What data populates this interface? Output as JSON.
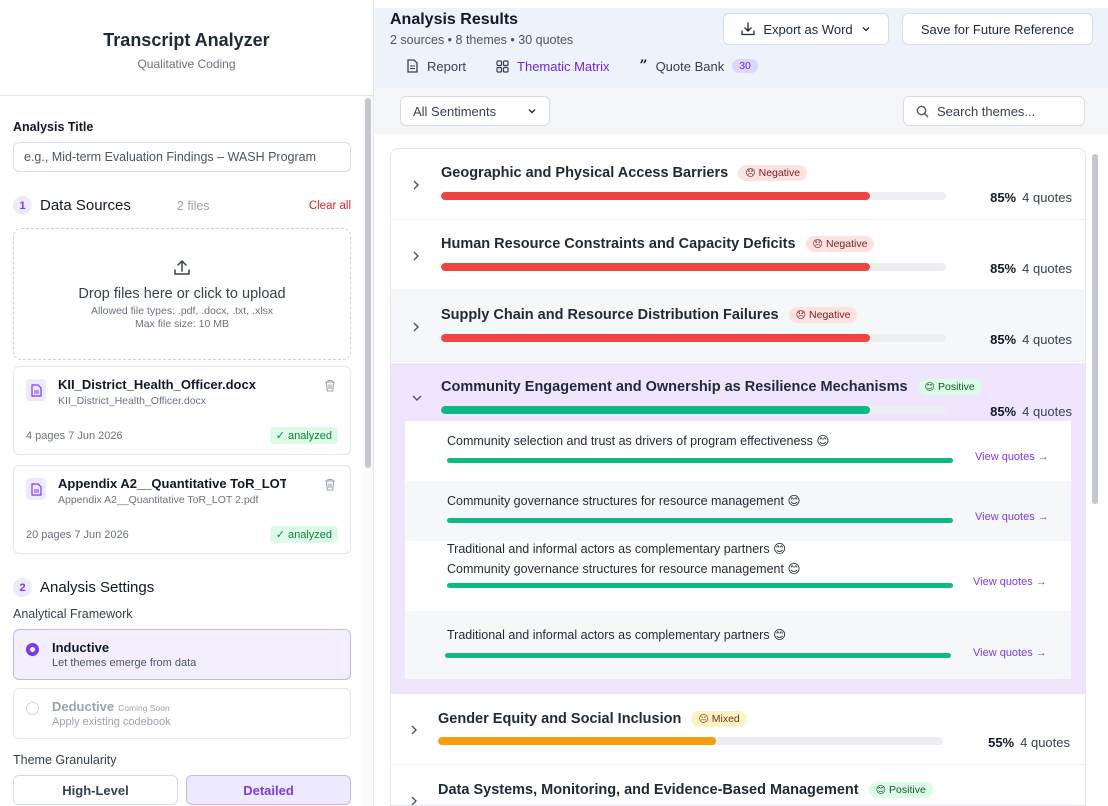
{
  "sidebar": {
    "title": "Transcript Analyzer",
    "subtitle": "Qualitative Coding",
    "analysis_title_label": "Analysis Title",
    "analysis_title_placeholder": "e.g., Mid-term Evaluation Findings – WASH Program",
    "data_sources": {
      "step": "1",
      "title": "Data Sources",
      "count": "2 files",
      "clear_label": "Clear all",
      "dropzone_main": "Drop files here or click to upload",
      "dropzone_types": "Allowed file types: .pdf, .docx, .txt, .xlsx",
      "dropzone_size": "Max file size: 10 MB",
      "files": [
        {
          "name": "KII_District_Health_Officer.docx",
          "sub": "KII_District_Health_Officer.docx",
          "meta": "4 pages  7 Jun 2026",
          "status": "✓ analyzed"
        },
        {
          "name": "Appendix A2__Quantitative ToR_LOT 2.pdf",
          "sub": "Appendix A2__Quantitative ToR_LOT 2.pdf",
          "meta": "20 pages  7 Jun 2026",
          "status": "✓ analyzed"
        }
      ]
    },
    "settings": {
      "step": "2",
      "title": "Analysis Settings",
      "framework_label": "Analytical Framework",
      "options": [
        {
          "title": "Inductive",
          "desc": "Let themes emerge from data",
          "selected": true
        },
        {
          "title": "Deductive",
          "tag": "Coming Soon",
          "desc": "Apply existing codebook",
          "selected": false
        }
      ],
      "granularity_label": "Theme Granularity",
      "granularity": [
        "High-Level",
        "Detailed"
      ],
      "granularity_selected": "Detailed"
    }
  },
  "main": {
    "title": "Analysis Results",
    "meta": "2 sources • 8 themes • 30 quotes",
    "export_label": "Export as Word",
    "save_label": "Save for Future Reference",
    "tabs": [
      {
        "label": "Report",
        "icon": "document-icon"
      },
      {
        "label": "Thematic Matrix",
        "icon": "grid-icon"
      },
      {
        "label": "Quote Bank",
        "icon": "quote-icon",
        "count": "30"
      }
    ],
    "active_tab": "Thematic Matrix",
    "sentiment_filter": "All Sentiments",
    "search_placeholder": "Search themes...",
    "themes": [
      {
        "title": "Geographic and Physical Access Barriers",
        "sentiment": "Negative",
        "emoji": "😞",
        "pct": "85%",
        "quotes": "4 quotes",
        "value": 0.85,
        "color": "#ef4444"
      },
      {
        "title": "Human Resource Constraints and Capacity Deficits",
        "sentiment": "Negative",
        "emoji": "😞",
        "pct": "85%",
        "quotes": "4 quotes",
        "value": 0.85,
        "color": "#ef4444"
      },
      {
        "title": "Supply Chain and Resource Distribution Failures",
        "sentiment": "Negative",
        "emoji": "😞",
        "pct": "85%",
        "quotes": "4 quotes",
        "value": 0.85,
        "color": "#ef4444"
      },
      {
        "title": "Community Engagement and Ownership as Resilience Mechanisms",
        "sentiment": "Positive",
        "emoji": "😊",
        "pct": "85%",
        "quotes": "4 quotes",
        "value": 0.85,
        "color": "#10b981"
      },
      {
        "title": "Gender Equity and Social Inclusion",
        "sentiment": "Mixed",
        "emoji": "😐",
        "pct": "55%",
        "quotes": "4 quotes",
        "value": 0.55,
        "color": "#f59e0b"
      },
      {
        "title": "Data Systems, Monitoring, and Evidence-Based Management",
        "sentiment": "Positive",
        "emoji": "😊",
        "pct": "",
        "quotes": "",
        "value": 0,
        "color": "#10b981"
      }
    ],
    "subthemes": [
      {
        "title": "Community selection and trust as drivers of program effectiveness",
        "emoji": "😊",
        "link": "View quotes →"
      },
      {
        "title": "Community governance structures for resource management",
        "emoji": "😊",
        "link": "View quotes →"
      },
      {
        "title": "Traditional and informal actors as complementary partners",
        "emoji": "😊",
        "link": ""
      },
      {
        "title": "Community governance structures for resource management",
        "emoji": "😊",
        "link": "View quotes →"
      },
      {
        "title": "Traditional and informal actors as complementary partners",
        "emoji": "😊",
        "link": "View quotes →"
      }
    ],
    "colors": {
      "accent": "#7c3aed",
      "negative": "#ef4444",
      "positive": "#10b981",
      "mixed": "#f59e0b"
    }
  }
}
